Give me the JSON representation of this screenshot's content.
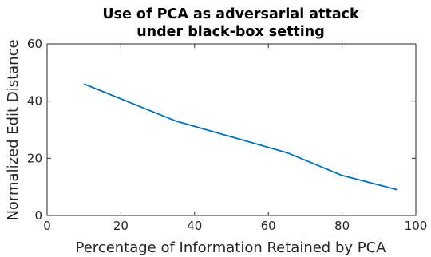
{
  "chart_data": {
    "type": "line",
    "title_lines": [
      "Use of PCA as adversarial attack",
      "under black-box setting"
    ],
    "xlabel": "Percentage of Information Retained by PCA",
    "ylabel": "Normalized Edit Distance",
    "xlim": [
      0,
      100
    ],
    "ylim": [
      0,
      60
    ],
    "xticks": [
      0,
      20,
      40,
      60,
      80,
      100
    ],
    "yticks": [
      0,
      20,
      40,
      60
    ],
    "grid": false,
    "series": [
      {
        "x": [
          10,
          35,
          50,
          65,
          80,
          95
        ],
        "y": [
          46,
          33,
          27.5,
          22,
          14,
          9
        ],
        "color": "#0072BD"
      }
    ],
    "colors": {
      "line": "#0072BD",
      "axis": "#262626"
    }
  }
}
